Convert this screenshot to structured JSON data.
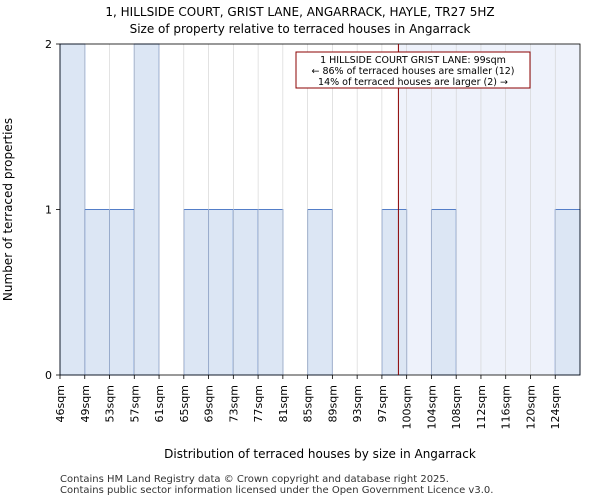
{
  "chart_data": {
    "type": "bar",
    "title": "1, HILLSIDE COURT, GRIST LANE, ANGARRACK, HAYLE, TR27 5HZ",
    "subtitle": "Size of property relative to terraced houses in Angarrack",
    "xlabel": "Distribution of terraced houses by size in Angarrack",
    "ylabel": "Number of terraced properties",
    "categories": [
      "46sqm",
      "49sqm",
      "53sqm",
      "57sqm",
      "61sqm",
      "65sqm",
      "69sqm",
      "73sqm",
      "77sqm",
      "81sqm",
      "85sqm",
      "89sqm",
      "93sqm",
      "97sqm",
      "100sqm",
      "104sqm",
      "108sqm",
      "112sqm",
      "116sqm",
      "120sqm",
      "124sqm"
    ],
    "values": [
      2,
      1,
      1,
      2,
      0,
      1,
      1,
      1,
      1,
      0,
      1,
      0,
      0,
      1,
      0,
      1,
      0,
      0,
      0,
      0,
      1
    ],
    "yticks": [
      0,
      1,
      2
    ],
    "ylim": [
      0,
      2
    ],
    "marker_value": 99,
    "annotation": {
      "line1": "1 HILLSIDE COURT GRIST LANE: 99sqm",
      "line2": "← 86% of terraced houses are smaller (12)",
      "line3": "14% of terraced houses are larger (2) →"
    },
    "colors": {
      "bar_fill": "#dce6f4",
      "bar_edge": "#4472c4",
      "highlight_bg": "#eef2fb",
      "marker": "#8b0000"
    }
  },
  "footer": {
    "line1": "Contains HM Land Registry data © Crown copyright and database right 2025.",
    "line2": "Contains public sector information licensed under the Open Government Licence v3.0."
  }
}
